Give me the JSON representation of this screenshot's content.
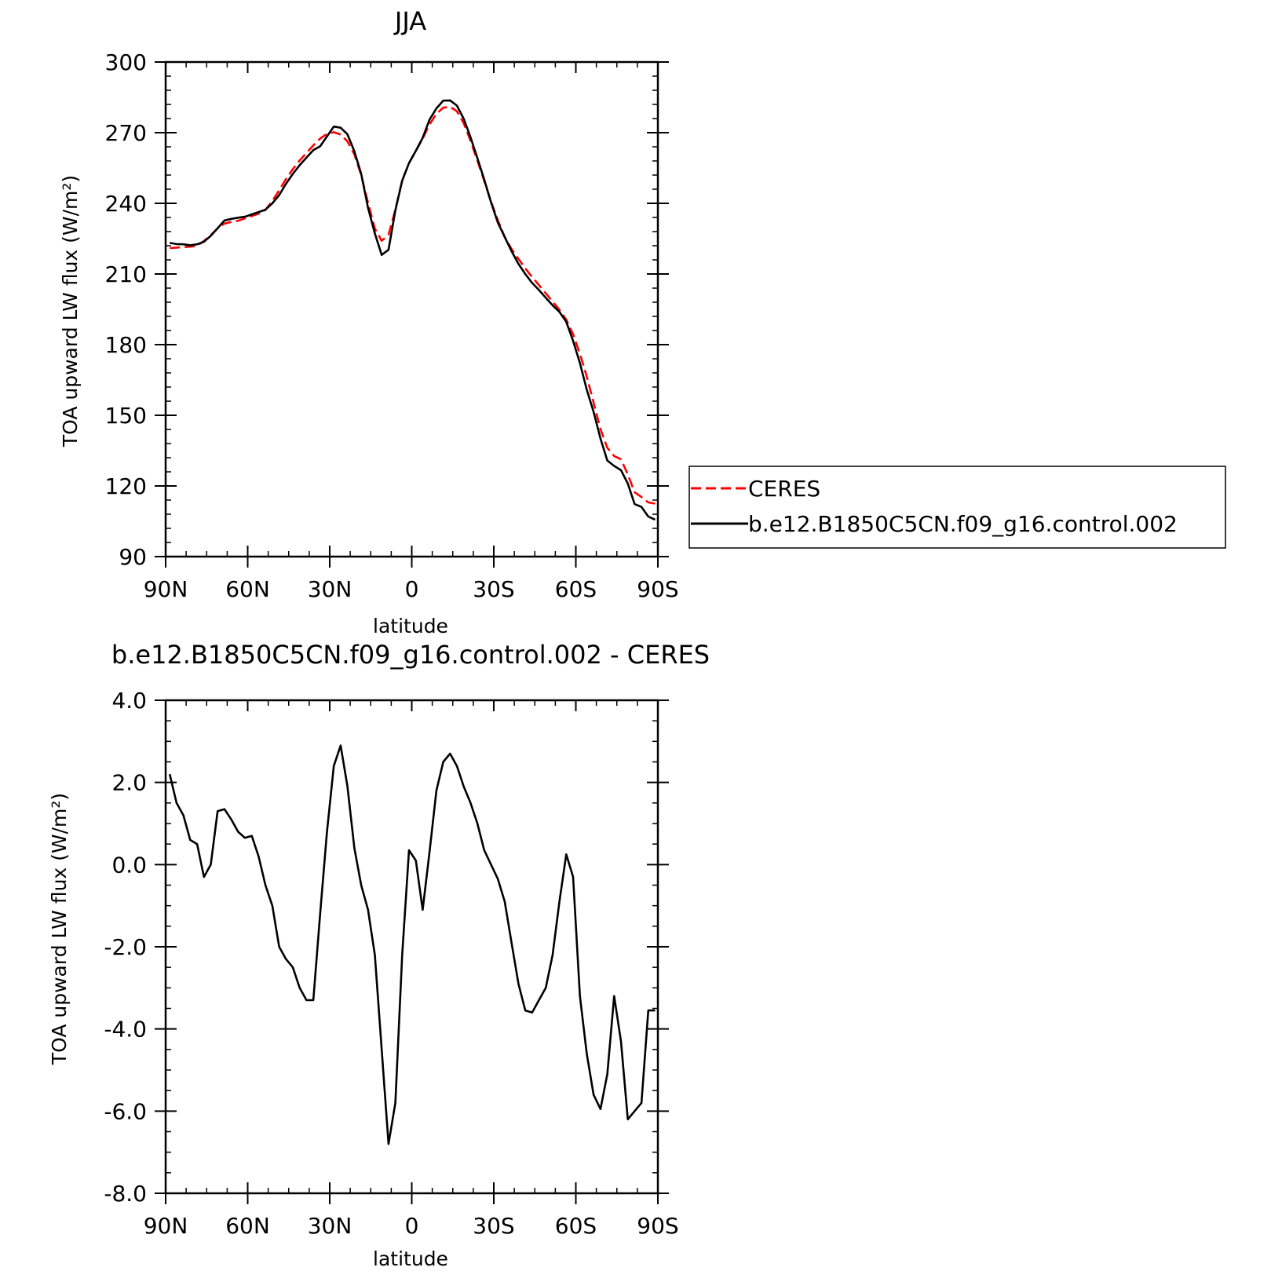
{
  "chart_data": [
    {
      "type": "line",
      "title": "JJA",
      "xlabel": "latitude",
      "ylabel": "TOA upward LW flux (W/m²)",
      "x_tick_labels": [
        "90N",
        "60N",
        "30N",
        "0",
        "30S",
        "60S",
        "90S"
      ],
      "x_tick_values": [
        90,
        60,
        30,
        0,
        -30,
        -60,
        -90
      ],
      "y_tick_labels": [
        "90",
        "120",
        "150",
        "180",
        "210",
        "240",
        "270",
        "300"
      ],
      "y_tick_values": [
        90,
        120,
        150,
        180,
        210,
        240,
        270,
        300
      ],
      "xlim": [
        90,
        -90
      ],
      "ylim": [
        90,
        300
      ],
      "legend": {
        "placement": "right"
      },
      "series": [
        {
          "name": "CERES",
          "color": "#ff0000",
          "dash": "dashed",
          "x": [
            88.5,
            86,
            83.5,
            81,
            78.5,
            76,
            73.5,
            71,
            68.5,
            66,
            63.5,
            61,
            58.5,
            56,
            53.5,
            51,
            48.5,
            46,
            43.5,
            41,
            38.5,
            36,
            33.5,
            31,
            28.5,
            26,
            23.5,
            21,
            18.5,
            16,
            13.5,
            11,
            8.5,
            6,
            3.5,
            1,
            -1.5,
            -4,
            -6.5,
            -9,
            -11.5,
            -14,
            -16.5,
            -19,
            -21.5,
            -24,
            -26.5,
            -29,
            -31.5,
            -34,
            -36.5,
            -39,
            -41.5,
            -44,
            -46.5,
            -49,
            -51.5,
            -54,
            -56.5,
            -59,
            -61.5,
            -64,
            -66.5,
            -69,
            -71.5,
            -74,
            -76.5,
            -79,
            -81.5,
            -84,
            -86.5,
            -89
          ],
          "values": [
            221.0,
            221.2,
            221.4,
            221.6,
            222.0,
            224.0,
            226.5,
            229.4,
            231.4,
            232.1,
            232.6,
            233.6,
            234.6,
            235.6,
            237.2,
            241.0,
            245.5,
            250.3,
            254.5,
            258.2,
            261.4,
            264.6,
            267.5,
            269.5,
            270.2,
            269.2,
            266.3,
            260.8,
            252.0,
            240.2,
            229.3,
            224.1,
            226.6,
            237.3,
            249.7,
            257.1,
            262.3,
            267.5,
            273.5,
            278.0,
            280.6,
            281.0,
            279.1,
            274.0,
            266.5,
            258.2,
            249.5,
            240.7,
            232.8,
            225.7,
            220.6,
            216.4,
            212.4,
            208.7,
            205.3,
            201.8,
            198.3,
            194.8,
            190.6,
            184.4,
            176.1,
            166.5,
            155.4,
            144.1,
            136.2,
            132.7,
            131.3,
            124.9,
            117.3,
            115.3,
            113.0,
            112.5
          ]
        },
        {
          "name": "b.e12.B1850C5CN.f09_g16.control.002",
          "color": "#000000",
          "dash": "solid",
          "x": [
            88.5,
            86,
            83.5,
            81,
            78.5,
            76,
            73.5,
            71,
            68.5,
            66,
            63.5,
            61,
            58.5,
            56,
            53.5,
            51,
            48.5,
            46,
            43.5,
            41,
            38.5,
            36,
            33.5,
            31,
            28.5,
            26,
            23.5,
            21,
            18.5,
            16,
            13.5,
            11,
            8.5,
            6,
            3.5,
            1,
            -1.5,
            -4,
            -6.5,
            -9,
            -11.5,
            -14,
            -16.5,
            -19,
            -21.5,
            -24,
            -26.5,
            -29,
            -31.5,
            -34,
            -36.5,
            -39,
            -41.5,
            -44,
            -46.5,
            -49,
            -51.5,
            -54,
            -56.5,
            -59,
            -61.5,
            -64,
            -66.5,
            -69,
            -71.5,
            -74,
            -76.5,
            -79,
            -81.5,
            -84,
            -86.5,
            -89
          ],
          "values": [
            223.2,
            222.7,
            222.6,
            222.2,
            222.6,
            223.7,
            226.2,
            229.4,
            232.7,
            233.4,
            233.9,
            234.3,
            235.3,
            236.3,
            237.3,
            240.0,
            243.5,
            248.3,
            252.5,
            256.2,
            259.4,
            262.6,
            264.2,
            268.4,
            272.6,
            272.1,
            269.3,
            262.1,
            252.5,
            238.1,
            227.2,
            218.1,
            220.3,
            237.0,
            249.6,
            257.1,
            262.3,
            267.8,
            275.5,
            280.3,
            283.6,
            283.7,
            281.5,
            275.9,
            268.0,
            259.2,
            250.1,
            240.4,
            231.8,
            225.7,
            219.7,
            214.3,
            210.0,
            206.2,
            203.2,
            199.9,
            196.7,
            193.9,
            189.7,
            181.6,
            172.2,
            160.9,
            151.5,
            140.1,
            130.8,
            128.5,
            126.7,
            121.0,
            112.3,
            111.1,
            107.0,
            105.7
          ]
        }
      ]
    },
    {
      "type": "line",
      "title": "b.e12.B1850C5CN.f09_g16.control.002 - CERES",
      "xlabel": "latitude",
      "ylabel": "TOA upward LW flux (W/m²)",
      "x_tick_labels": [
        "90N",
        "60N",
        "30N",
        "0",
        "30S",
        "60S",
        "90S"
      ],
      "x_tick_values": [
        90,
        60,
        30,
        0,
        -30,
        -60,
        -90
      ],
      "y_tick_labels": [
        "4.0",
        "2.0",
        "0.0",
        "-2.0",
        "-4.0",
        "-6.0",
        "-8.0"
      ],
      "y_tick_values": [
        4,
        2,
        0,
        -2,
        -4,
        -6,
        -8
      ],
      "xlim": [
        90,
        -90
      ],
      "ylim": [
        -8,
        4
      ],
      "series": [
        {
          "color": "#000000",
          "dash": "solid",
          "x": [
            88.5,
            86,
            83.5,
            81,
            78.5,
            76,
            73.5,
            71,
            68.5,
            66,
            63.5,
            61,
            58.5,
            56,
            53.5,
            51,
            48.5,
            46,
            43.5,
            41,
            38.5,
            36,
            33.5,
            31,
            28.5,
            26,
            23.5,
            21,
            18.5,
            16,
            13.5,
            11,
            8.5,
            6,
            3.5,
            1,
            -1.5,
            -4,
            -6.5,
            -9,
            -11.5,
            -14,
            -16.5,
            -19,
            -21.5,
            -24,
            -26.5,
            -29,
            -31.5,
            -34,
            -36.5,
            -39,
            -41.5,
            -44,
            -46.5,
            -49,
            -51.5,
            -54,
            -56.5,
            -59,
            -61.5,
            -64,
            -66.5,
            -69,
            -71.5,
            -74,
            -76.5,
            -79,
            -81.5,
            -84,
            -86.5,
            -89
          ],
          "values": [
            2.2,
            1.5,
            1.2,
            0.6,
            0.5,
            -0.3,
            0.0,
            1.3,
            1.35,
            1.1,
            0.8,
            0.65,
            0.7,
            0.2,
            -0.5,
            -1.0,
            -2.0,
            -2.3,
            -2.5,
            -3.0,
            -3.3,
            -3.3,
            -1.2,
            0.8,
            2.4,
            2.9,
            1.9,
            0.4,
            -0.5,
            -1.1,
            -2.2,
            -4.5,
            -6.8,
            -5.8,
            -2.2,
            0.35,
            0.1,
            -1.1,
            0.3,
            1.8,
            2.5,
            2.7,
            2.4,
            1.9,
            1.5,
            1.0,
            0.35,
            0.0,
            -0.35,
            -0.9,
            -1.9,
            -2.9,
            -3.55,
            -3.6,
            -3.3,
            -3.0,
            -2.2,
            -0.9,
            0.25,
            -0.3,
            -3.2,
            -4.6,
            -5.6,
            -5.95,
            -5.1,
            -3.2,
            -4.3,
            -6.2,
            -6.0,
            -5.8,
            -3.55,
            -3.55
          ]
        }
      ]
    }
  ]
}
